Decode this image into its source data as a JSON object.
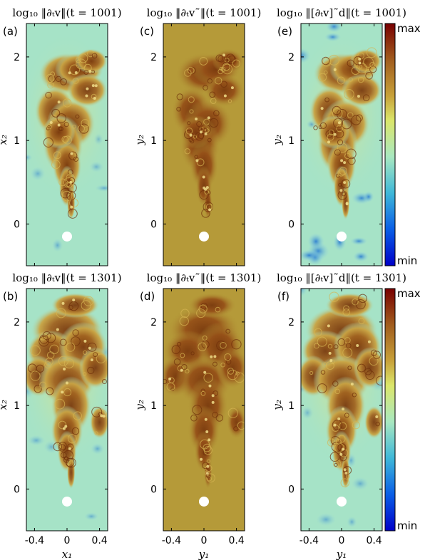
{
  "chart_data": {
    "type": "heatmap",
    "colormap": "jet",
    "colorbar_labels": {
      "top": "max",
      "bottom": "min"
    },
    "colors": {
      "cyan_bg": "#a6e3c7",
      "mustard_bg": "#b59a39",
      "dark_core": "#8c4a14",
      "mid": "#c08a3a",
      "blue_spot": "#3a8fd6"
    },
    "panels": [
      {
        "id": "a",
        "label": "(a)",
        "title": "log₁₀ ‖∂ₜv‖(t = 1001)",
        "xlabel": "",
        "ylabel": "x₂",
        "style": "cyan",
        "time": 1001
      },
      {
        "id": "c",
        "label": "(c)",
        "title": "log₁₀ ‖∂ₜv˜‖(t = 1001)",
        "xlabel": "",
        "ylabel": "y₂",
        "style": "mustard",
        "time": 1001
      },
      {
        "id": "e",
        "label": "(e)",
        "title": "log₁₀ ‖[∂ₜv]˜d‖(t = 1001)",
        "xlabel": "",
        "ylabel": "y₂",
        "style": "cyan-dark",
        "time": 1001
      },
      {
        "id": "b",
        "label": "(b)",
        "title": "log₁₀ ‖∂ₜv‖(t = 1301)",
        "xlabel": "x₁",
        "ylabel": "x₂",
        "style": "cyan",
        "time": 1301
      },
      {
        "id": "d",
        "label": "(d)",
        "title": "log₁₀ ‖∂ₜv˜‖(t = 1301)",
        "xlabel": "y₁",
        "ylabel": "y₂",
        "style": "mustard",
        "time": 1301
      },
      {
        "id": "f",
        "label": "(f)",
        "title": "log₁₀ ‖[∂ₜv]˜d‖(t = 1301)",
        "xlabel": "y₁",
        "ylabel": "y₂",
        "style": "cyan",
        "time": 1301
      }
    ],
    "xticks": [
      "-0.4",
      "0",
      "0.4"
    ],
    "xtick_values": [
      -0.4,
      0,
      0.4
    ],
    "xlim": [
      -0.5,
      0.5
    ],
    "yticks": [
      "0",
      "1",
      "2"
    ],
    "ytick_values": [
      0,
      1,
      2
    ],
    "ylim": [
      -0.5,
      2.4
    ]
  }
}
